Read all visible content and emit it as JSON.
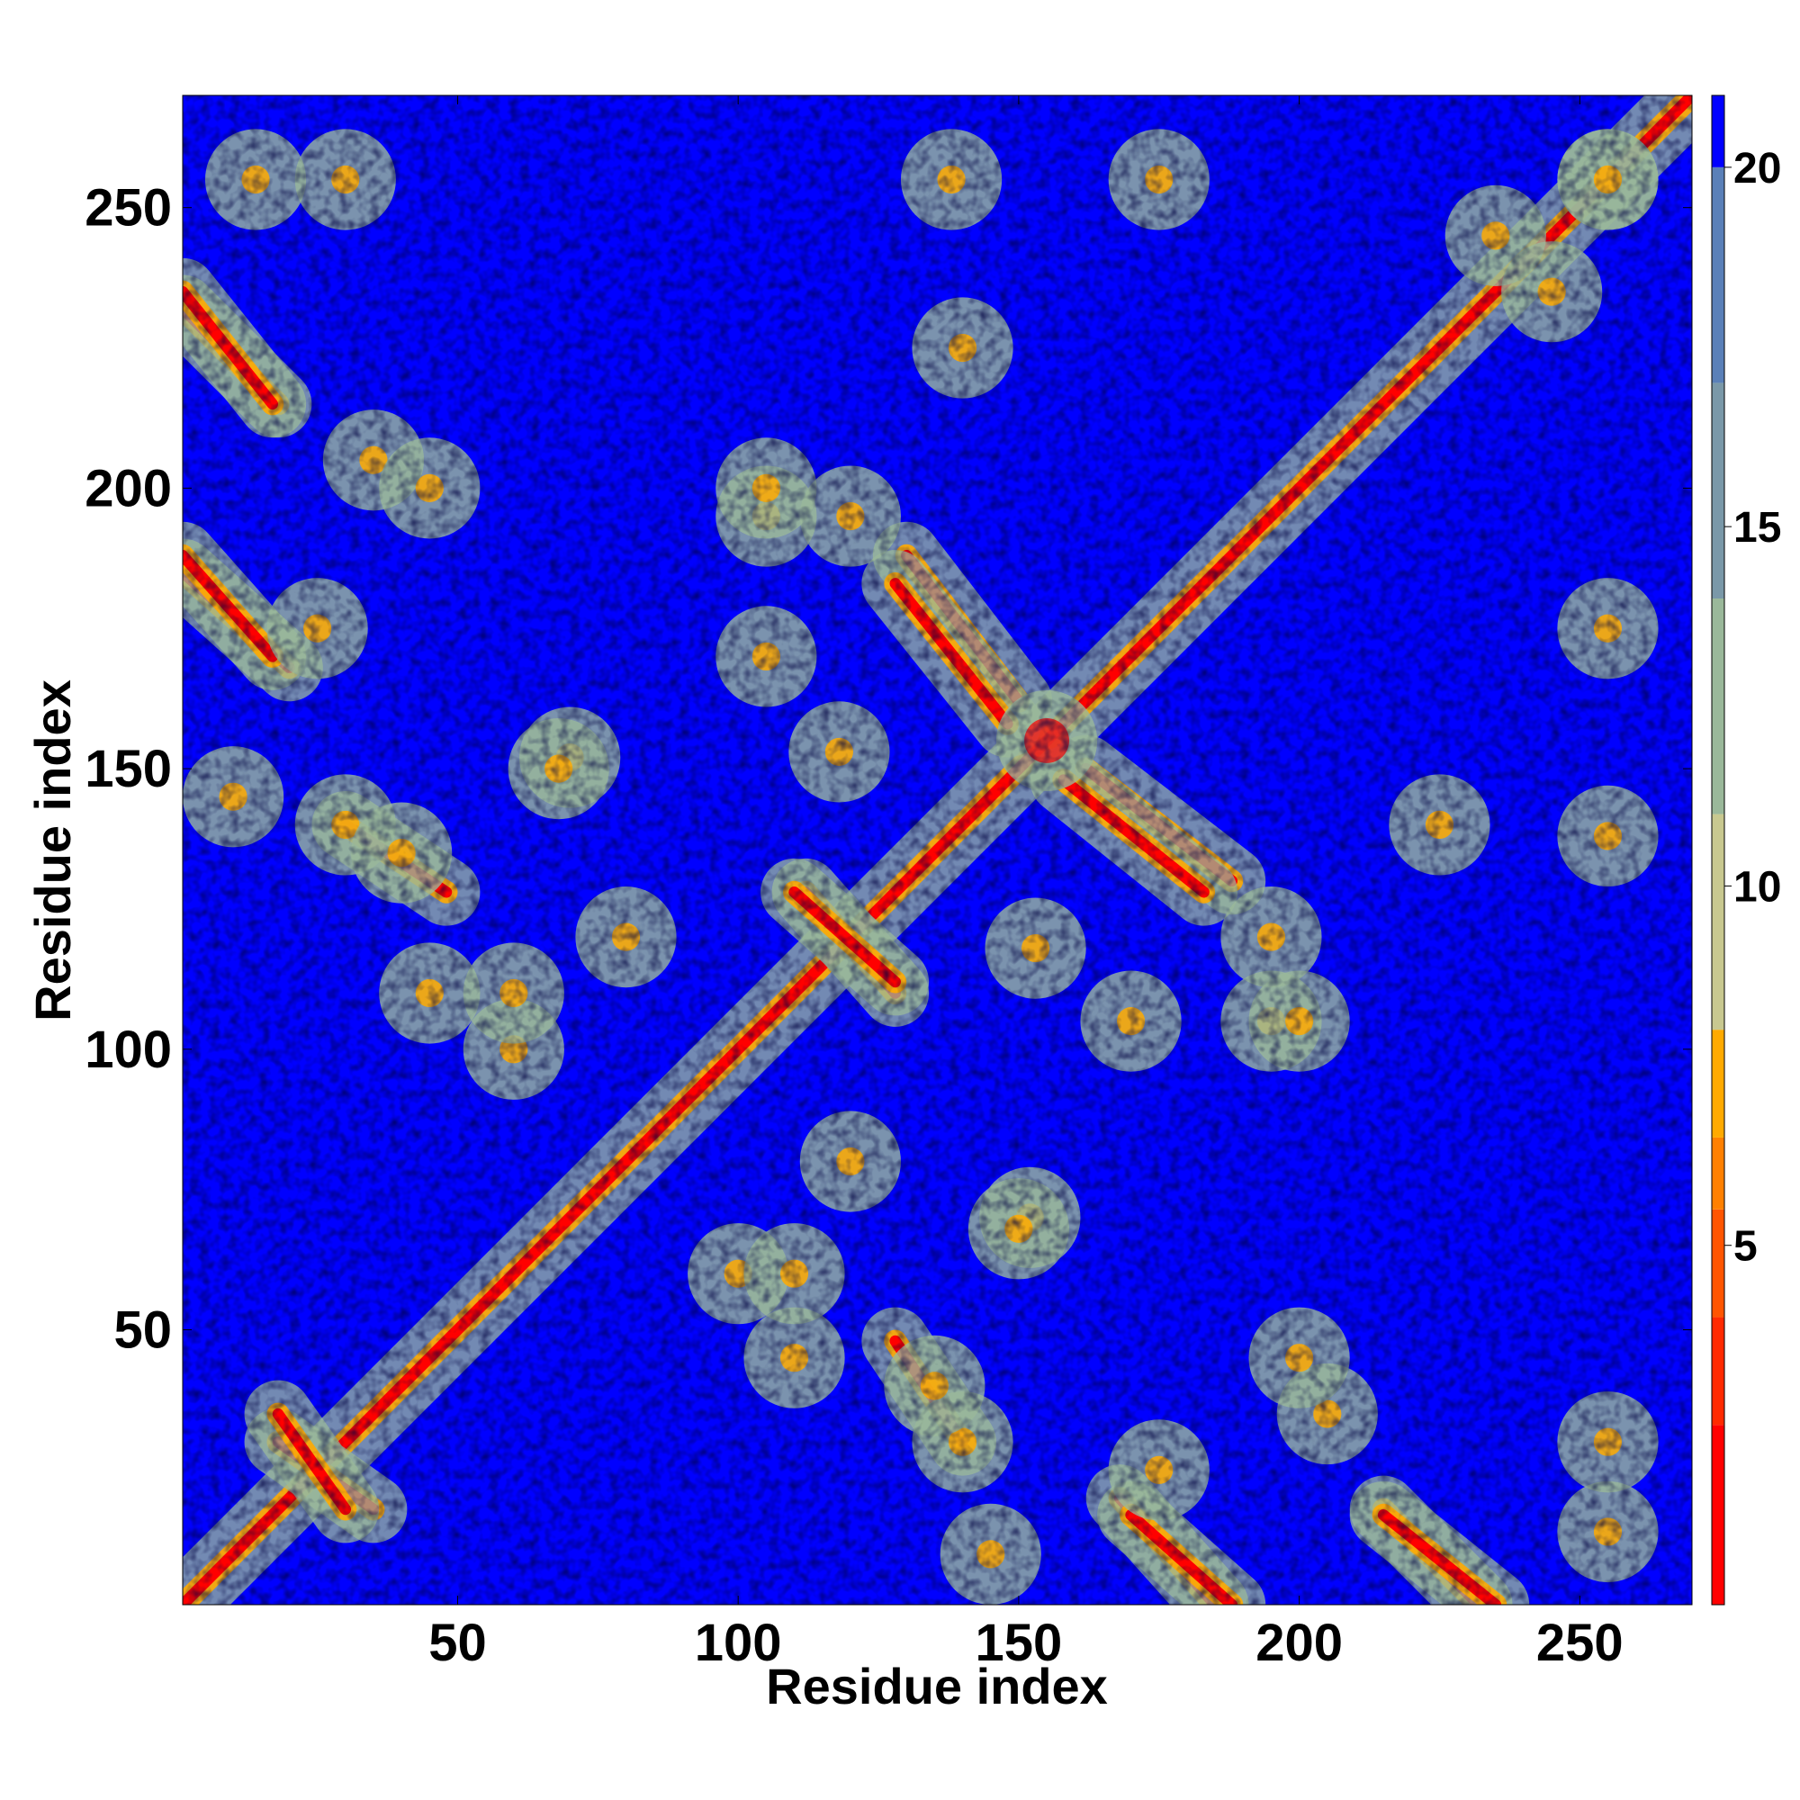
{
  "chart_data": {
    "type": "heatmap",
    "title": "",
    "xlabel": "Residue index",
    "ylabel": "Residue index",
    "n_residues": 270,
    "xlim": [
      1,
      270
    ],
    "ylim": [
      1,
      270
    ],
    "x_ticks": [
      50,
      100,
      150,
      200,
      250
    ],
    "y_ticks": [
      50,
      100,
      150,
      200,
      250
    ],
    "colorbar": {
      "range": [
        0,
        21
      ],
      "ticks": [
        5,
        10,
        15,
        20
      ],
      "colors": [
        "#ff0000",
        "#ff2a00",
        "#ff5500",
        "#ff8000",
        "#ffaa00",
        "#c8c890",
        "#9ab89a",
        "#7a98a8",
        "#5a80b8",
        "#0000ff"
      ],
      "levels": [
        0,
        2.5,
        4,
        5.5,
        6.5,
        8,
        11,
        14,
        17,
        20,
        21
      ]
    },
    "colors": {
      "background": "#0000ff",
      "near": "#ff0000",
      "mid": "#ffaa00",
      "far": "#9ab89a"
    },
    "contact_map": {
      "diagonal_band": [
        [
          1,
          1
        ],
        [
          270,
          270
        ]
      ],
      "anti_diagonal_crossing_at": 155,
      "helix_contact_lines": [
        [
          [
            1,
            232
          ],
          [
            18,
            215
          ]
        ],
        [
          [
            1,
            185
          ],
          [
            20,
            168
          ]
        ],
        [
          [
            130,
            188
          ],
          [
            150,
            162
          ]
        ],
        [
          [
            158,
            148
          ],
          [
            183,
            128
          ]
        ],
        [
          [
            170,
            17
          ],
          [
            188,
            1
          ]
        ],
        [
          [
            215,
            17
          ],
          [
            235,
            1
          ]
        ],
        [
          [
            30,
            140
          ],
          [
            48,
            128
          ]
        ],
        [
          [
            112,
            128
          ],
          [
            128,
            110
          ]
        ],
        [
          [
            18,
            30
          ],
          [
            35,
            18
          ]
        ]
      ],
      "contact_clusters": [
        [
          35,
          205
        ],
        [
          14,
          255
        ],
        [
          105,
          195
        ],
        [
          70,
          152
        ],
        [
          118,
          153
        ],
        [
          45,
          110
        ],
        [
          30,
          140
        ],
        [
          100,
          60
        ],
        [
          170,
          105
        ],
        [
          200,
          105
        ],
        [
          200,
          45
        ],
        [
          150,
          68
        ],
        [
          135,
          40
        ],
        [
          145,
          10
        ],
        [
          175,
          25
        ],
        [
          255,
          30
        ],
        [
          255,
          138
        ],
        [
          255,
          175
        ],
        [
          225,
          140
        ],
        [
          245,
          235
        ],
        [
          255,
          255
        ],
        [
          195,
          120
        ],
        [
          120,
          80
        ],
        [
          60,
          110
        ]
      ]
    }
  }
}
